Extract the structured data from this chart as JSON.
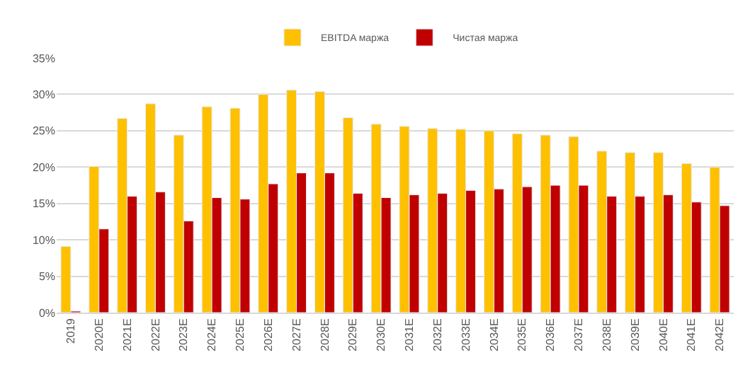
{
  "chart_data": {
    "type": "bar",
    "categories": [
      "2019",
      "2020E",
      "2021E",
      "2022E",
      "2023E",
      "2024E",
      "2025E",
      "2026E",
      "2027E",
      "2028E",
      "2029E",
      "2030E",
      "2031E",
      "2032E",
      "2033E",
      "2034E",
      "2035E",
      "2036E",
      "2037E",
      "2038E",
      "2039E",
      "2040E",
      "2041E",
      "2042E"
    ],
    "series": [
      {
        "name": "EBITDA маржа",
        "color": "#ffc000",
        "values": [
          9.1,
          20.1,
          26.7,
          28.7,
          24.4,
          28.3,
          28.1,
          30.0,
          30.6,
          30.4,
          26.8,
          25.9,
          25.6,
          25.3,
          25.2,
          25.0,
          24.6,
          24.4,
          24.2,
          22.2,
          22.0,
          22.0,
          20.5,
          20.0
        ]
      },
      {
        "name": "Чистая маржа",
        "color": "#c00000",
        "values": [
          0.2,
          11.5,
          16.0,
          16.6,
          12.6,
          15.8,
          15.6,
          17.7,
          19.2,
          19.2,
          16.4,
          15.8,
          16.2,
          16.4,
          16.8,
          17.0,
          17.3,
          17.5,
          17.5,
          16.0,
          16.0,
          16.2,
          15.2,
          14.7
        ]
      }
    ],
    "ylim": [
      0,
      35
    ],
    "yticks": [
      {
        "value": 0,
        "label": "0%"
      },
      {
        "value": 5,
        "label": "5%"
      },
      {
        "value": 10,
        "label": "10%"
      },
      {
        "value": 15,
        "label": "15%"
      },
      {
        "value": 20,
        "label": "20%"
      },
      {
        "value": 25,
        "label": "25%"
      },
      {
        "value": 30,
        "label": "30%"
      },
      {
        "value": 35,
        "label": "35%"
      }
    ],
    "grid": "y",
    "legend": "top"
  }
}
